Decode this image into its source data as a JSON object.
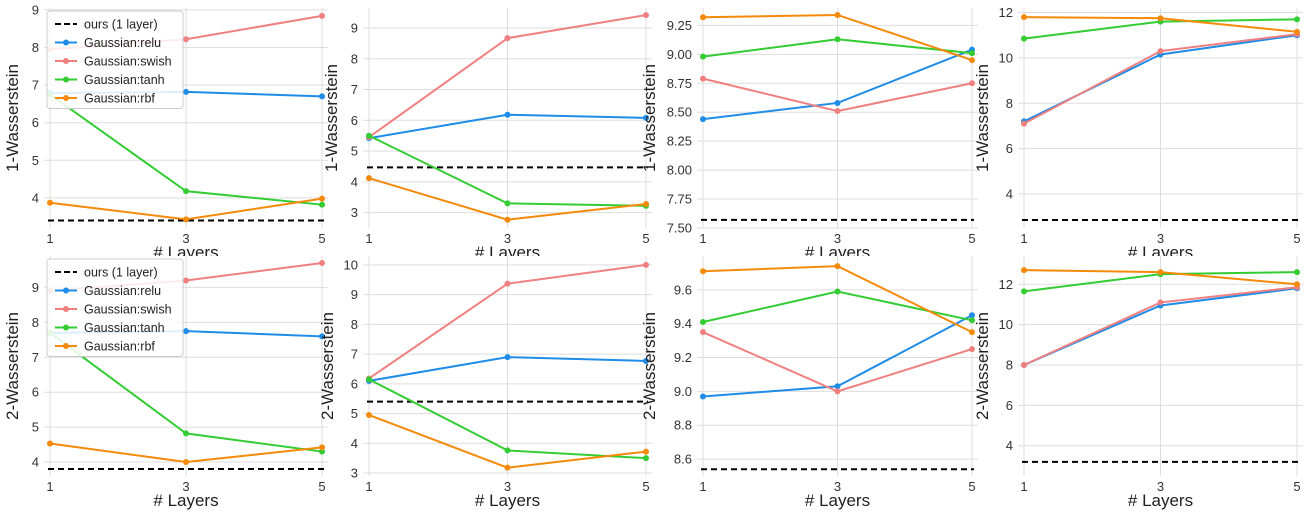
{
  "colors": {
    "ours": "#000000",
    "Gaussian:relu": "#1f8ce8",
    "Gaussian:swish": "#f08080",
    "Gaussian:tanh": "#33cc33",
    "Gaussian:rbf": "#f58a0a",
    "grid": "#dddddd",
    "background": "#ffffff"
  },
  "chart_data": [
    {
      "type": "line",
      "xlabel": "# Layers",
      "ylabel": "1-Wasserstein",
      "x": [
        1,
        3,
        5
      ],
      "ylim": [
        3.2,
        9.05
      ],
      "yticks": [
        4,
        5,
        6,
        7,
        8,
        9
      ],
      "tick_labels": [
        "4",
        "5",
        "6",
        "7",
        "8",
        "9"
      ],
      "legend": true,
      "legend_position": "upper-left",
      "baseline": 3.4,
      "series": [
        {
          "name": "Gaussian:relu",
          "values": [
            6.79,
            6.82,
            6.7
          ]
        },
        {
          "name": "Gaussian:swish",
          "values": [
            7.95,
            8.22,
            8.84
          ]
        },
        {
          "name": "Gaussian:tanh",
          "values": [
            6.75,
            4.18,
            3.82
          ]
        },
        {
          "name": "Gaussian:rbf",
          "values": [
            3.87,
            3.43,
            3.98
          ]
        }
      ]
    },
    {
      "type": "line",
      "xlabel": "# Layers",
      "ylabel": "1-Wasserstein",
      "x": [
        1,
        3,
        5
      ],
      "ylim": [
        2.5,
        9.65
      ],
      "yticks": [
        3,
        4,
        5,
        6,
        7,
        8,
        9
      ],
      "tick_labels": [
        "3",
        "4",
        "5",
        "6",
        "7",
        "8",
        "9"
      ],
      "legend": false,
      "baseline": 4.47,
      "series": [
        {
          "name": "Gaussian:relu",
          "values": [
            5.42,
            6.18,
            6.08
          ]
        },
        {
          "name": "Gaussian:swish",
          "values": [
            5.45,
            8.67,
            9.42
          ]
        },
        {
          "name": "Gaussian:tanh",
          "values": [
            5.5,
            3.3,
            3.22
          ]
        },
        {
          "name": "Gaussian:rbf",
          "values": [
            4.12,
            2.77,
            3.28
          ]
        }
      ]
    },
    {
      "type": "line",
      "xlabel": "# Layers",
      "ylabel": "1-Wasserstein",
      "x": [
        1,
        3,
        5
      ],
      "ylim": [
        7.5,
        9.4
      ],
      "yticks": [
        7.5,
        7.75,
        8.0,
        8.25,
        8.5,
        8.75,
        9.0,
        9.25
      ],
      "tick_labels": [
        "7.50",
        "7.75",
        "8.00",
        "8.25",
        "8.50",
        "8.75",
        "9.00",
        "9.25"
      ],
      "legend": false,
      "baseline": 7.57,
      "series": [
        {
          "name": "Gaussian:relu",
          "values": [
            8.44,
            8.58,
            9.04
          ]
        },
        {
          "name": "Gaussian:swish",
          "values": [
            8.79,
            8.51,
            8.75
          ]
        },
        {
          "name": "Gaussian:tanh",
          "values": [
            8.98,
            9.13,
            9.01
          ]
        },
        {
          "name": "Gaussian:rbf",
          "values": [
            9.32,
            9.34,
            8.95
          ]
        }
      ]
    },
    {
      "type": "line",
      "xlabel": "# Layers",
      "ylabel": "1-Wasserstein",
      "x": [
        1,
        3,
        5
      ],
      "ylim": [
        2.5,
        12.2
      ],
      "yticks": [
        4,
        6,
        8,
        10,
        12
      ],
      "tick_labels": [
        "4",
        "6",
        "8",
        "10",
        "12"
      ],
      "legend": false,
      "baseline": 2.85,
      "series": [
        {
          "name": "Gaussian:relu",
          "values": [
            7.2,
            10.15,
            11.0
          ]
        },
        {
          "name": "Gaussian:swish",
          "values": [
            7.1,
            10.3,
            11.05
          ]
        },
        {
          "name": "Gaussian:tanh",
          "values": [
            10.85,
            11.6,
            11.7
          ]
        },
        {
          "name": "Gaussian:rbf",
          "values": [
            11.8,
            11.75,
            11.15
          ]
        }
      ]
    },
    {
      "type": "line",
      "xlabel": "# Layers",
      "ylabel": "2-Wasserstein",
      "x": [
        1,
        3,
        5
      ],
      "ylim": [
        3.6,
        9.9
      ],
      "yticks": [
        4,
        5,
        6,
        7,
        8,
        9
      ],
      "tick_labels": [
        "4",
        "5",
        "6",
        "7",
        "8",
        "9"
      ],
      "legend": true,
      "legend_position": "upper-left",
      "baseline": 3.8,
      "series": [
        {
          "name": "Gaussian:relu",
          "values": [
            7.7,
            7.75,
            7.6
          ]
        },
        {
          "name": "Gaussian:swish",
          "values": [
            8.9,
            9.2,
            9.7
          ]
        },
        {
          "name": "Gaussian:tanh",
          "values": [
            7.7,
            4.82,
            4.3
          ]
        },
        {
          "name": "Gaussian:rbf",
          "values": [
            4.53,
            4.0,
            4.42
          ]
        }
      ]
    },
    {
      "type": "line",
      "xlabel": "# Layers",
      "ylabel": "2-Wasserstein",
      "x": [
        1,
        3,
        5
      ],
      "ylim": [
        2.9,
        10.3
      ],
      "yticks": [
        3,
        4,
        5,
        6,
        7,
        8,
        9,
        10
      ],
      "tick_labels": [
        "3",
        "4",
        "5",
        "6",
        "7",
        "8",
        "9",
        "10"
      ],
      "legend": false,
      "baseline": 5.4,
      "series": [
        {
          "name": "Gaussian:relu",
          "values": [
            6.1,
            6.9,
            6.77
          ]
        },
        {
          "name": "Gaussian:swish",
          "values": [
            6.18,
            9.37,
            10.0
          ]
        },
        {
          "name": "Gaussian:tanh",
          "values": [
            6.15,
            3.76,
            3.5
          ]
        },
        {
          "name": "Gaussian:rbf",
          "values": [
            4.95,
            3.18,
            3.72
          ]
        }
      ]
    },
    {
      "type": "line",
      "xlabel": "# Layers",
      "ylabel": "2-Wasserstein",
      "x": [
        1,
        3,
        5
      ],
      "ylim": [
        8.5,
        9.8
      ],
      "yticks": [
        8.6,
        8.8,
        9.0,
        9.2,
        9.4,
        9.6
      ],
      "tick_labels": [
        "8.6",
        "8.8",
        "9.0",
        "9.2",
        "9.4",
        "9.6"
      ],
      "legend": false,
      "baseline": 8.54,
      "series": [
        {
          "name": "Gaussian:relu",
          "values": [
            8.97,
            9.03,
            9.45
          ]
        },
        {
          "name": "Gaussian:swish",
          "values": [
            9.35,
            9.0,
            9.25
          ]
        },
        {
          "name": "Gaussian:tanh",
          "values": [
            9.41,
            9.59,
            9.42
          ]
        },
        {
          "name": "Gaussian:rbf",
          "values": [
            9.71,
            9.74,
            9.35
          ]
        }
      ]
    },
    {
      "type": "line",
      "xlabel": "# Layers",
      "ylabel": "2-Wasserstein",
      "x": [
        1,
        3,
        5
      ],
      "ylim": [
        2.5,
        13.4
      ],
      "yticks": [
        4,
        6,
        8,
        10,
        12
      ],
      "tick_labels": [
        "4",
        "6",
        "8",
        "10",
        "12"
      ],
      "legend": false,
      "baseline": 3.2,
      "series": [
        {
          "name": "Gaussian:relu",
          "values": [
            8.0,
            10.95,
            11.8
          ]
        },
        {
          "name": "Gaussian:swish",
          "values": [
            8.0,
            11.1,
            11.85
          ]
        },
        {
          "name": "Gaussian:tanh",
          "values": [
            11.65,
            12.5,
            12.6
          ]
        },
        {
          "name": "Gaussian:rbf",
          "values": [
            12.7,
            12.6,
            12.0
          ]
        }
      ]
    }
  ],
  "legend": {
    "entries": [
      {
        "label": "ours (1 layer)",
        "color_key": "ours",
        "style": "dashed",
        "marker": false
      },
      {
        "label": "Gaussian:relu",
        "color_key": "Gaussian:relu",
        "style": "solid",
        "marker": true
      },
      {
        "label": "Gaussian:swish",
        "color_key": "Gaussian:swish",
        "style": "solid",
        "marker": true
      },
      {
        "label": "Gaussian:tanh",
        "color_key": "Gaussian:tanh",
        "style": "solid",
        "marker": true
      },
      {
        "label": "Gaussian:rbf",
        "color_key": "Gaussian:rbf",
        "style": "solid",
        "marker": true
      }
    ]
  }
}
